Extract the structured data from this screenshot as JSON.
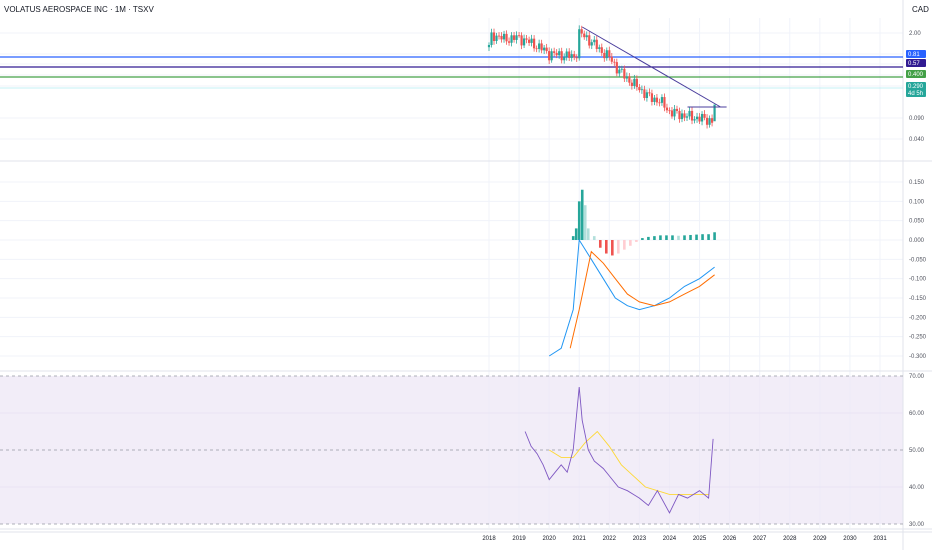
{
  "header": {
    "title": "VOLATUS AEROSPACE INC · 1M · TSXV",
    "currency": "CAD"
  },
  "colors": {
    "up": "#26a69a",
    "down": "#ef5350",
    "up_light": "#b2dfdb",
    "down_light": "#ffcdd2",
    "macd_line": "#2196f3",
    "signal_line": "#ff6d00",
    "rsi_line": "#7e57c2",
    "rsi_ma": "#fdd835",
    "trendline": "#4a3d9c",
    "hline_blue": "#2962ff",
    "hline_purple": "#311b92",
    "hline_green": "#43a047",
    "rsi_band": "#ede7f6"
  },
  "chart_data": [
    {
      "type": "candlestick",
      "pane": "price",
      "ylim": [
        0.2,
        2.4
      ],
      "y_ticks": [
        "2.00",
        "0.81",
        "0.57",
        "0.400",
        "0.290",
        "0.090",
        "0.040"
      ],
      "x_ticks": [
        "2018",
        "2019",
        "2020",
        "2021",
        "2022",
        "2023",
        "2024",
        "2025",
        "2026",
        "2027",
        "2028",
        "2029",
        "2030",
        "2031"
      ],
      "price_badges": [
        {
          "label": "0.81",
          "color": "#2962ff"
        },
        {
          "label": "0.57",
          "color": "#311b92"
        },
        {
          "label": "0.400",
          "color": "#43a047"
        },
        {
          "label": "0.290",
          "color": "#26a69a"
        },
        {
          "label": "4d 5h",
          "color": "#26a69a"
        }
      ],
      "horizontal_lines": [
        0.81,
        0.57,
        0.4
      ],
      "series": [
        {
          "name": "OHLC",
          "close_path": [
            [
              2018.0,
              1.5
            ],
            [
              2018.1,
              2.0
            ],
            [
              2018.5,
              1.8
            ],
            [
              2019.0,
              1.85
            ],
            [
              2019.5,
              1.6
            ],
            [
              2020.0,
              1.3
            ],
            [
              2020.5,
              1.25
            ],
            [
              2020.9,
              1.2
            ],
            [
              2021.0,
              2.05
            ],
            [
              2021.3,
              1.8
            ],
            [
              2021.7,
              1.4
            ],
            [
              2022.0,
              1.2
            ],
            [
              2022.3,
              0.9
            ],
            [
              2022.7,
              0.7
            ],
            [
              2023.0,
              0.6
            ],
            [
              2023.3,
              0.5
            ],
            [
              2023.7,
              0.45
            ],
            [
              2024.0,
              0.36
            ],
            [
              2024.3,
              0.34
            ],
            [
              2024.7,
              0.32
            ],
            [
              2025.0,
              0.31
            ],
            [
              2025.3,
              0.3
            ],
            [
              2025.45,
              0.29
            ]
          ]
        }
      ]
    },
    {
      "type": "bar",
      "pane": "macd",
      "indicator": "MACD",
      "ylim": [
        -0.3,
        0.15
      ],
      "y_ticks": [
        "0.150",
        "0.100",
        "0.050",
        "0.000",
        "-0.050",
        "-0.100",
        "-0.150",
        "-0.200",
        "-0.250",
        "-0.300"
      ],
      "series": [
        {
          "name": "MACD",
          "x": [
            2020.0,
            2020.4,
            2020.8,
            2021.0,
            2021.4,
            2021.8,
            2022.2,
            2022.6,
            2023.0,
            2023.5,
            2024.0,
            2024.5,
            2025.0,
            2025.5
          ],
          "values": [
            -0.3,
            -0.28,
            -0.18,
            0.0,
            -0.05,
            -0.1,
            -0.15,
            -0.17,
            -0.18,
            -0.17,
            -0.15,
            -0.12,
            -0.1,
            -0.07
          ]
        },
        {
          "name": "Signal",
          "x": [
            2020.7,
            2021.0,
            2021.4,
            2021.8,
            2022.2,
            2022.6,
            2023.0,
            2023.5,
            2024.0,
            2024.5,
            2025.0,
            2025.5
          ],
          "values": [
            -0.28,
            -0.18,
            -0.03,
            -0.06,
            -0.1,
            -0.14,
            -0.16,
            -0.17,
            -0.16,
            -0.14,
            -0.12,
            -0.09
          ]
        },
        {
          "name": "Histogram",
          "x": [
            2020.8,
            2020.9,
            2021.0,
            2021.1,
            2021.2,
            2021.3,
            2021.5,
            2021.7,
            2021.9,
            2022.1,
            2022.3,
            2022.5,
            2022.7,
            2022.9,
            2023.1,
            2023.3,
            2023.5,
            2023.7,
            2023.9,
            2024.1,
            2024.3,
            2024.5,
            2024.7,
            2024.9,
            2025.1,
            2025.3,
            2025.5
          ],
          "values": [
            0.01,
            0.03,
            0.1,
            0.13,
            0.09,
            0.03,
            0.01,
            -0.02,
            -0.035,
            -0.04,
            -0.035,
            -0.025,
            -0.015,
            -0.005,
            0.005,
            0.008,
            0.01,
            0.012,
            0.012,
            0.012,
            0.011,
            0.012,
            0.013,
            0.014,
            0.015,
            0.015,
            0.02
          ]
        }
      ]
    },
    {
      "type": "line",
      "pane": "rsi",
      "indicator": "RSI",
      "ylim": [
        30,
        70
      ],
      "y_ticks": [
        "70.00",
        "60.00",
        "50.00",
        "40.00",
        "30.00"
      ],
      "band": [
        30,
        70
      ],
      "series": [
        {
          "name": "RSI",
          "x": [
            2019.2,
            2019.4,
            2019.6,
            2019.8,
            2020.0,
            2020.2,
            2020.4,
            2020.6,
            2020.8,
            2021.0,
            2021.1,
            2021.3,
            2021.5,
            2021.8,
            2022.0,
            2022.3,
            2022.6,
            2023.0,
            2023.3,
            2023.6,
            2024.0,
            2024.3,
            2024.6,
            2025.0,
            2025.3,
            2025.45
          ],
          "values": [
            55,
            51,
            49,
            46,
            42,
            44,
            46,
            44,
            50,
            67,
            58,
            50,
            47,
            45,
            43,
            40,
            39,
            37,
            35,
            39,
            33,
            38,
            37,
            39,
            37,
            53
          ]
        },
        {
          "name": "RSI MA",
          "x": [
            2020.0,
            2020.4,
            2020.8,
            2021.2,
            2021.6,
            2022.0,
            2022.4,
            2022.8,
            2023.2,
            2023.6,
            2024.0,
            2024.5,
            2025.0,
            2025.3
          ],
          "values": [
            50,
            48,
            48,
            52,
            55,
            51,
            46,
            43,
            40,
            39,
            38,
            38,
            38,
            38
          ]
        }
      ]
    }
  ]
}
